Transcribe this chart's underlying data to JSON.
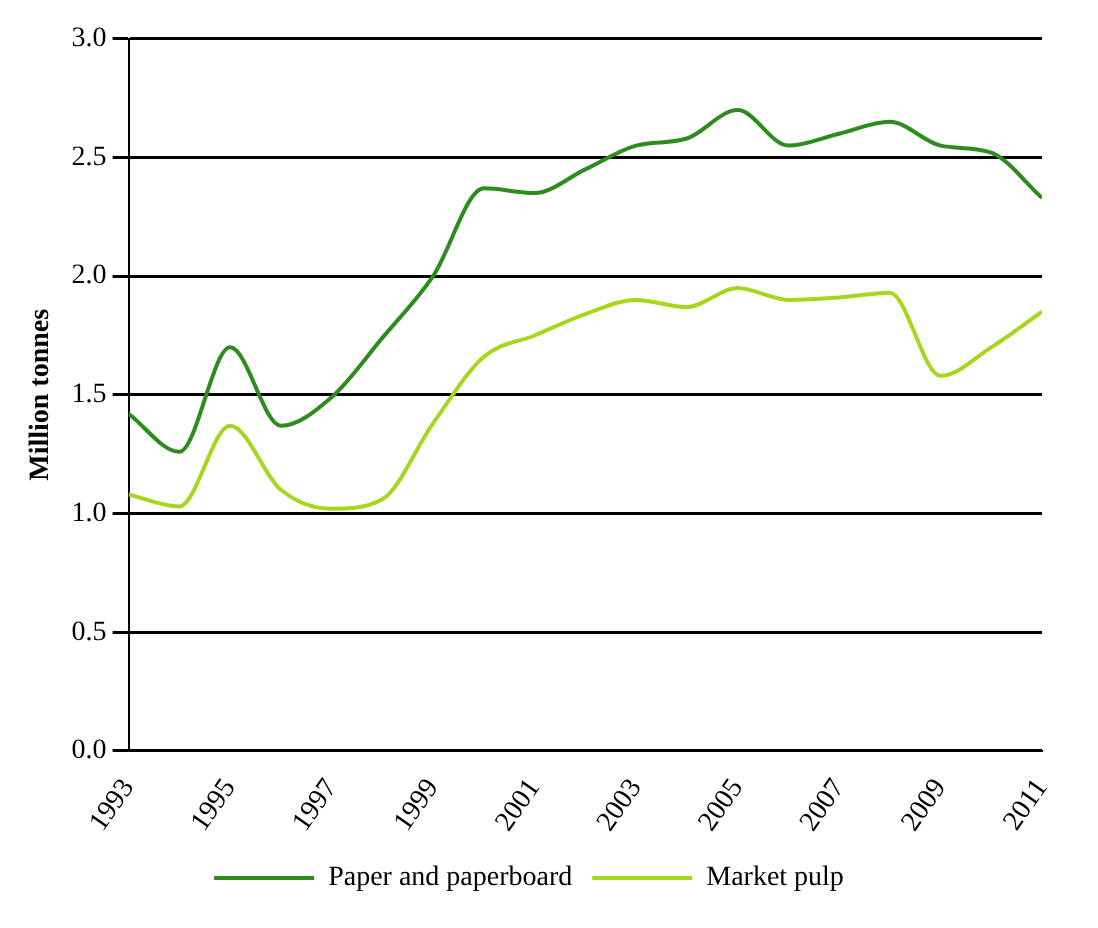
{
  "chart_data": {
    "type": "line",
    "ylabel": "Million tonnes",
    "x": [
      1993,
      1994,
      1995,
      1996,
      1997,
      1998,
      1999,
      2000,
      2001,
      2002,
      2003,
      2004,
      2005,
      2006,
      2007,
      2008,
      2009,
      2010,
      2011
    ],
    "series": [
      {
        "name": "Paper and paperboard",
        "color": "#2e8b1e",
        "values": [
          1.42,
          1.26,
          1.7,
          1.37,
          1.49,
          1.74,
          2.0,
          2.37,
          2.35,
          2.45,
          2.55,
          2.58,
          2.7,
          2.55,
          2.6,
          2.65,
          2.55,
          2.52,
          2.33
        ]
      },
      {
        "name": "Market pulp",
        "color": "#a6d61e",
        "values": [
          1.08,
          1.03,
          1.37,
          1.1,
          1.02,
          1.06,
          1.38,
          1.66,
          1.75,
          1.84,
          1.9,
          1.87,
          1.95,
          1.9,
          1.91,
          1.93,
          1.58,
          1.7,
          1.85
        ]
      }
    ],
    "xlim": [
      1993,
      2011
    ],
    "xticks": [
      1993,
      1995,
      1997,
      1999,
      2001,
      2003,
      2005,
      2007,
      2009,
      2011
    ],
    "ylim": [
      0,
      3
    ],
    "yticks": [
      {
        "value": 0,
        "label": "0.0"
      },
      {
        "value": 0.5,
        "label": "0.5"
      },
      {
        "value": 1,
        "label": "1.0"
      },
      {
        "value": 1.5,
        "label": "1.5"
      },
      {
        "value": 2,
        "label": "2.0"
      },
      {
        "value": 2.5,
        "label": "2.5"
      },
      {
        "value": 3,
        "label": "3.0"
      }
    ],
    "grid": "y",
    "legend": "bottom",
    "marker": "none",
    "line_style": "solid"
  }
}
